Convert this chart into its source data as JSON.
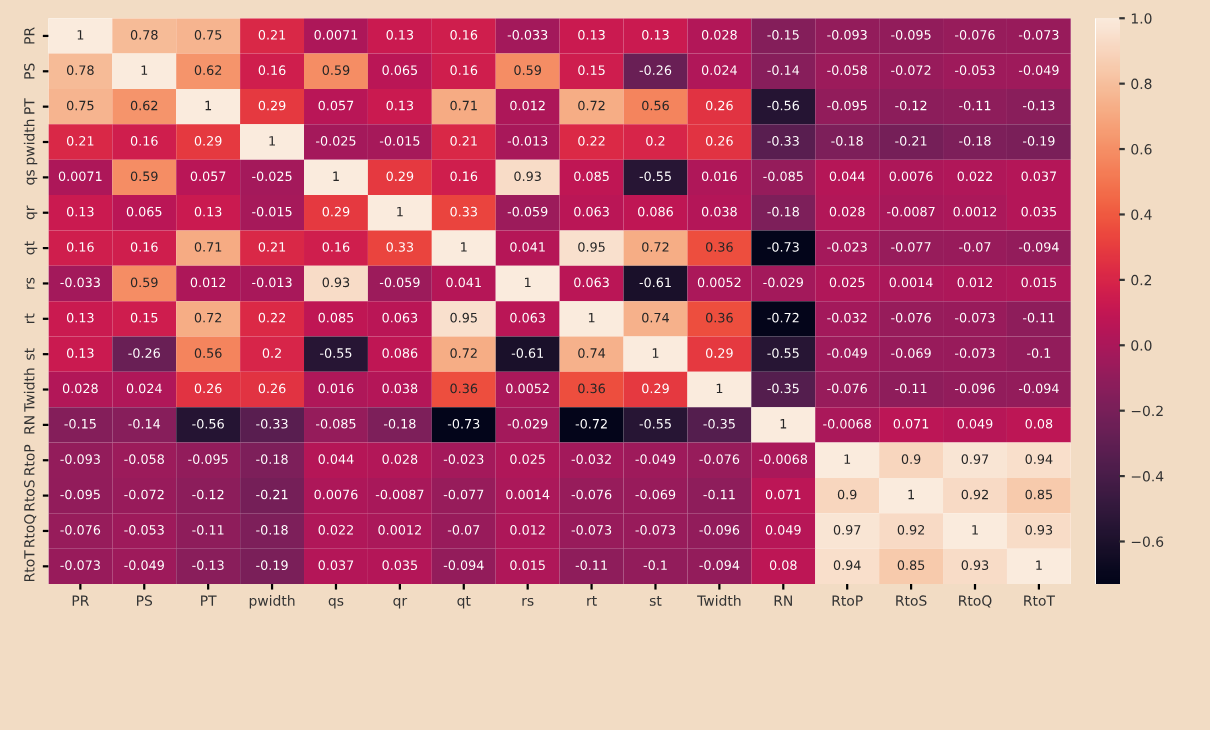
{
  "chart_data": {
    "type": "heatmap",
    "categories": [
      "PR",
      "PS",
      "PT",
      "pwidth",
      "qs",
      "qr",
      "qt",
      "rs",
      "rt",
      "st",
      "Twidth",
      "RN",
      "RtoP",
      "RtoS",
      "RtoQ",
      "RtoT"
    ],
    "y_categories": [
      "PR",
      "PS",
      "PT",
      "pwidth",
      "qs",
      "qr",
      "qt",
      "rs",
      "rt",
      "st",
      "Twidth",
      "RN",
      "RtoP",
      "RtoS",
      "RtoQ",
      "RtoT"
    ],
    "cells": [
      [
        1,
        0.78,
        0.75,
        0.21,
        0.0071,
        0.13,
        0.16,
        -0.033,
        0.13,
        0.13,
        0.028,
        -0.15,
        -0.093,
        -0.095,
        -0.076,
        -0.073
      ],
      [
        0.78,
        1,
        0.62,
        0.16,
        0.59,
        0.065,
        0.16,
        0.59,
        0.15,
        -0.26,
        0.024,
        -0.14,
        -0.058,
        -0.072,
        -0.053,
        -0.049
      ],
      [
        0.75,
        0.62,
        1,
        0.29,
        0.057,
        0.13,
        0.71,
        0.012,
        0.72,
        0.56,
        0.26,
        -0.56,
        -0.095,
        -0.12,
        -0.11,
        -0.13
      ],
      [
        0.21,
        0.16,
        0.29,
        1,
        -0.025,
        -0.015,
        0.21,
        -0.013,
        0.22,
        0.2,
        0.26,
        -0.33,
        -0.18,
        -0.21,
        -0.18,
        -0.19
      ],
      [
        0.0071,
        0.59,
        0.057,
        -0.025,
        1,
        0.29,
        0.16,
        0.93,
        0.085,
        -0.55,
        0.016,
        -0.085,
        0.044,
        0.0076,
        0.022,
        0.037
      ],
      [
        0.13,
        0.065,
        0.13,
        -0.015,
        0.29,
        1,
        0.33,
        -0.059,
        0.063,
        0.086,
        0.038,
        -0.18,
        0.028,
        -0.0087,
        0.0012,
        0.035
      ],
      [
        0.16,
        0.16,
        0.71,
        0.21,
        0.16,
        0.33,
        1,
        0.041,
        0.95,
        0.72,
        0.36,
        -0.73,
        -0.023,
        -0.077,
        -0.07,
        -0.094
      ],
      [
        -0.033,
        0.59,
        0.012,
        -0.013,
        0.93,
        -0.059,
        0.041,
        1,
        0.063,
        -0.61,
        0.0052,
        -0.029,
        0.025,
        0.0014,
        0.012,
        0.015
      ],
      [
        0.13,
        0.15,
        0.72,
        0.22,
        0.085,
        0.063,
        0.95,
        0.063,
        1,
        0.74,
        0.36,
        -0.72,
        -0.032,
        -0.076,
        -0.073,
        -0.11
      ],
      [
        0.13,
        -0.26,
        0.56,
        0.2,
        -0.55,
        0.086,
        0.72,
        -0.61,
        0.74,
        1,
        0.29,
        -0.55,
        -0.049,
        -0.069,
        -0.073,
        -0.1
      ],
      [
        0.028,
        0.024,
        0.26,
        0.26,
        0.016,
        0.038,
        0.36,
        0.0052,
        0.36,
        0.29,
        1,
        -0.35,
        -0.076,
        -0.11,
        -0.096,
        -0.094
      ],
      [
        -0.15,
        -0.14,
        -0.56,
        -0.33,
        -0.085,
        -0.18,
        -0.73,
        -0.029,
        -0.72,
        -0.55,
        -0.35,
        1,
        -0.0068,
        0.071,
        0.049,
        0.08
      ],
      [
        -0.093,
        -0.058,
        -0.095,
        -0.18,
        0.044,
        0.028,
        -0.023,
        0.025,
        -0.032,
        -0.049,
        -0.076,
        -0.0068,
        1,
        0.9,
        0.97,
        0.94
      ],
      [
        -0.095,
        -0.072,
        -0.12,
        -0.21,
        0.0076,
        -0.0087,
        -0.077,
        0.0014,
        -0.076,
        -0.069,
        -0.11,
        0.071,
        0.9,
        1,
        0.92,
        0.85
      ],
      [
        -0.076,
        -0.053,
        -0.11,
        -0.18,
        0.022,
        0.0012,
        -0.07,
        0.012,
        -0.073,
        -0.073,
        -0.096,
        0.049,
        0.97,
        0.92,
        1,
        0.93
      ],
      [
        -0.073,
        -0.049,
        -0.13,
        -0.19,
        0.037,
        0.035,
        -0.094,
        0.015,
        -0.11,
        -0.1,
        -0.094,
        0.08,
        0.94,
        0.85,
        0.93,
        1
      ]
    ],
    "clim": [
      -0.73,
      1
    ],
    "cticks": [
      {
        "value": 1,
        "label": "1.0"
      },
      {
        "value": 0.8,
        "label": "0.8"
      },
      {
        "value": 0.6,
        "label": "0.6"
      },
      {
        "value": 0.4,
        "label": "0.4"
      },
      {
        "value": 0.2,
        "label": "0.2"
      },
      {
        "value": 0,
        "label": "0.0"
      },
      {
        "value": -0.2,
        "label": "−0.2"
      },
      {
        "value": -0.4,
        "label": "−0.4"
      },
      {
        "value": -0.6,
        "label": "−0.6"
      }
    ],
    "data_labels": true
  }
}
